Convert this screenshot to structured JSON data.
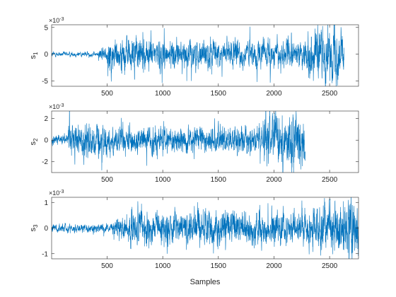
{
  "chart_data": {
    "type": "line",
    "series_color": "#0072BD",
    "axes_color": "#262626",
    "xlabel": "Samples",
    "x_ticks": [
      500,
      1000,
      1500,
      2000,
      2500
    ],
    "subplots": [
      {
        "ylabel_main": "s",
        "ylabel_sub": "1",
        "exponent": "×10",
        "exponent_power": "-3",
        "xlim": [
          1,
          2760
        ],
        "ylim": [
          -6,
          5.5
        ],
        "y_ticks": [
          -5,
          0,
          5
        ],
        "signal": {
          "length": 2630,
          "segments": [
            {
              "end": 420,
              "amplitude": 0.35
            },
            {
              "end": 500,
              "amplitude": 0.9
            },
            {
              "end": 900,
              "amplitude": 2.6
            },
            {
              "end": 2300,
              "amplitude": 2.0
            },
            {
              "end": 2630,
              "amplitude": 3.4
            }
          ]
        }
      },
      {
        "ylabel_main": "s",
        "ylabel_sub": "2",
        "exponent": "×10",
        "exponent_power": "-3",
        "xlim": [
          1,
          2760
        ],
        "ylim": [
          -3,
          2.7
        ],
        "y_ticks": [
          -2,
          0,
          2
        ],
        "signal": {
          "length": 2280,
          "segments": [
            {
              "end": 150,
              "amplitude": 0.35
            },
            {
              "end": 500,
              "amplitude": 1.3
            },
            {
              "end": 1900,
              "amplitude": 0.9
            },
            {
              "end": 2280,
              "amplitude": 1.8
            }
          ]
        }
      },
      {
        "ylabel_main": "s",
        "ylabel_sub": "3",
        "exponent": "×10",
        "exponent_power": "-3",
        "xlim": [
          1,
          2760
        ],
        "ylim": [
          -1.2,
          1.2
        ],
        "y_ticks": [
          -1,
          0,
          1
        ],
        "signal": {
          "length": 2760,
          "segments": [
            {
              "end": 550,
              "amplitude": 0.13
            },
            {
              "end": 700,
              "amplitude": 0.35
            },
            {
              "end": 2400,
              "amplitude": 0.5
            },
            {
              "end": 2760,
              "amplitude": 0.75
            }
          ]
        }
      }
    ]
  }
}
